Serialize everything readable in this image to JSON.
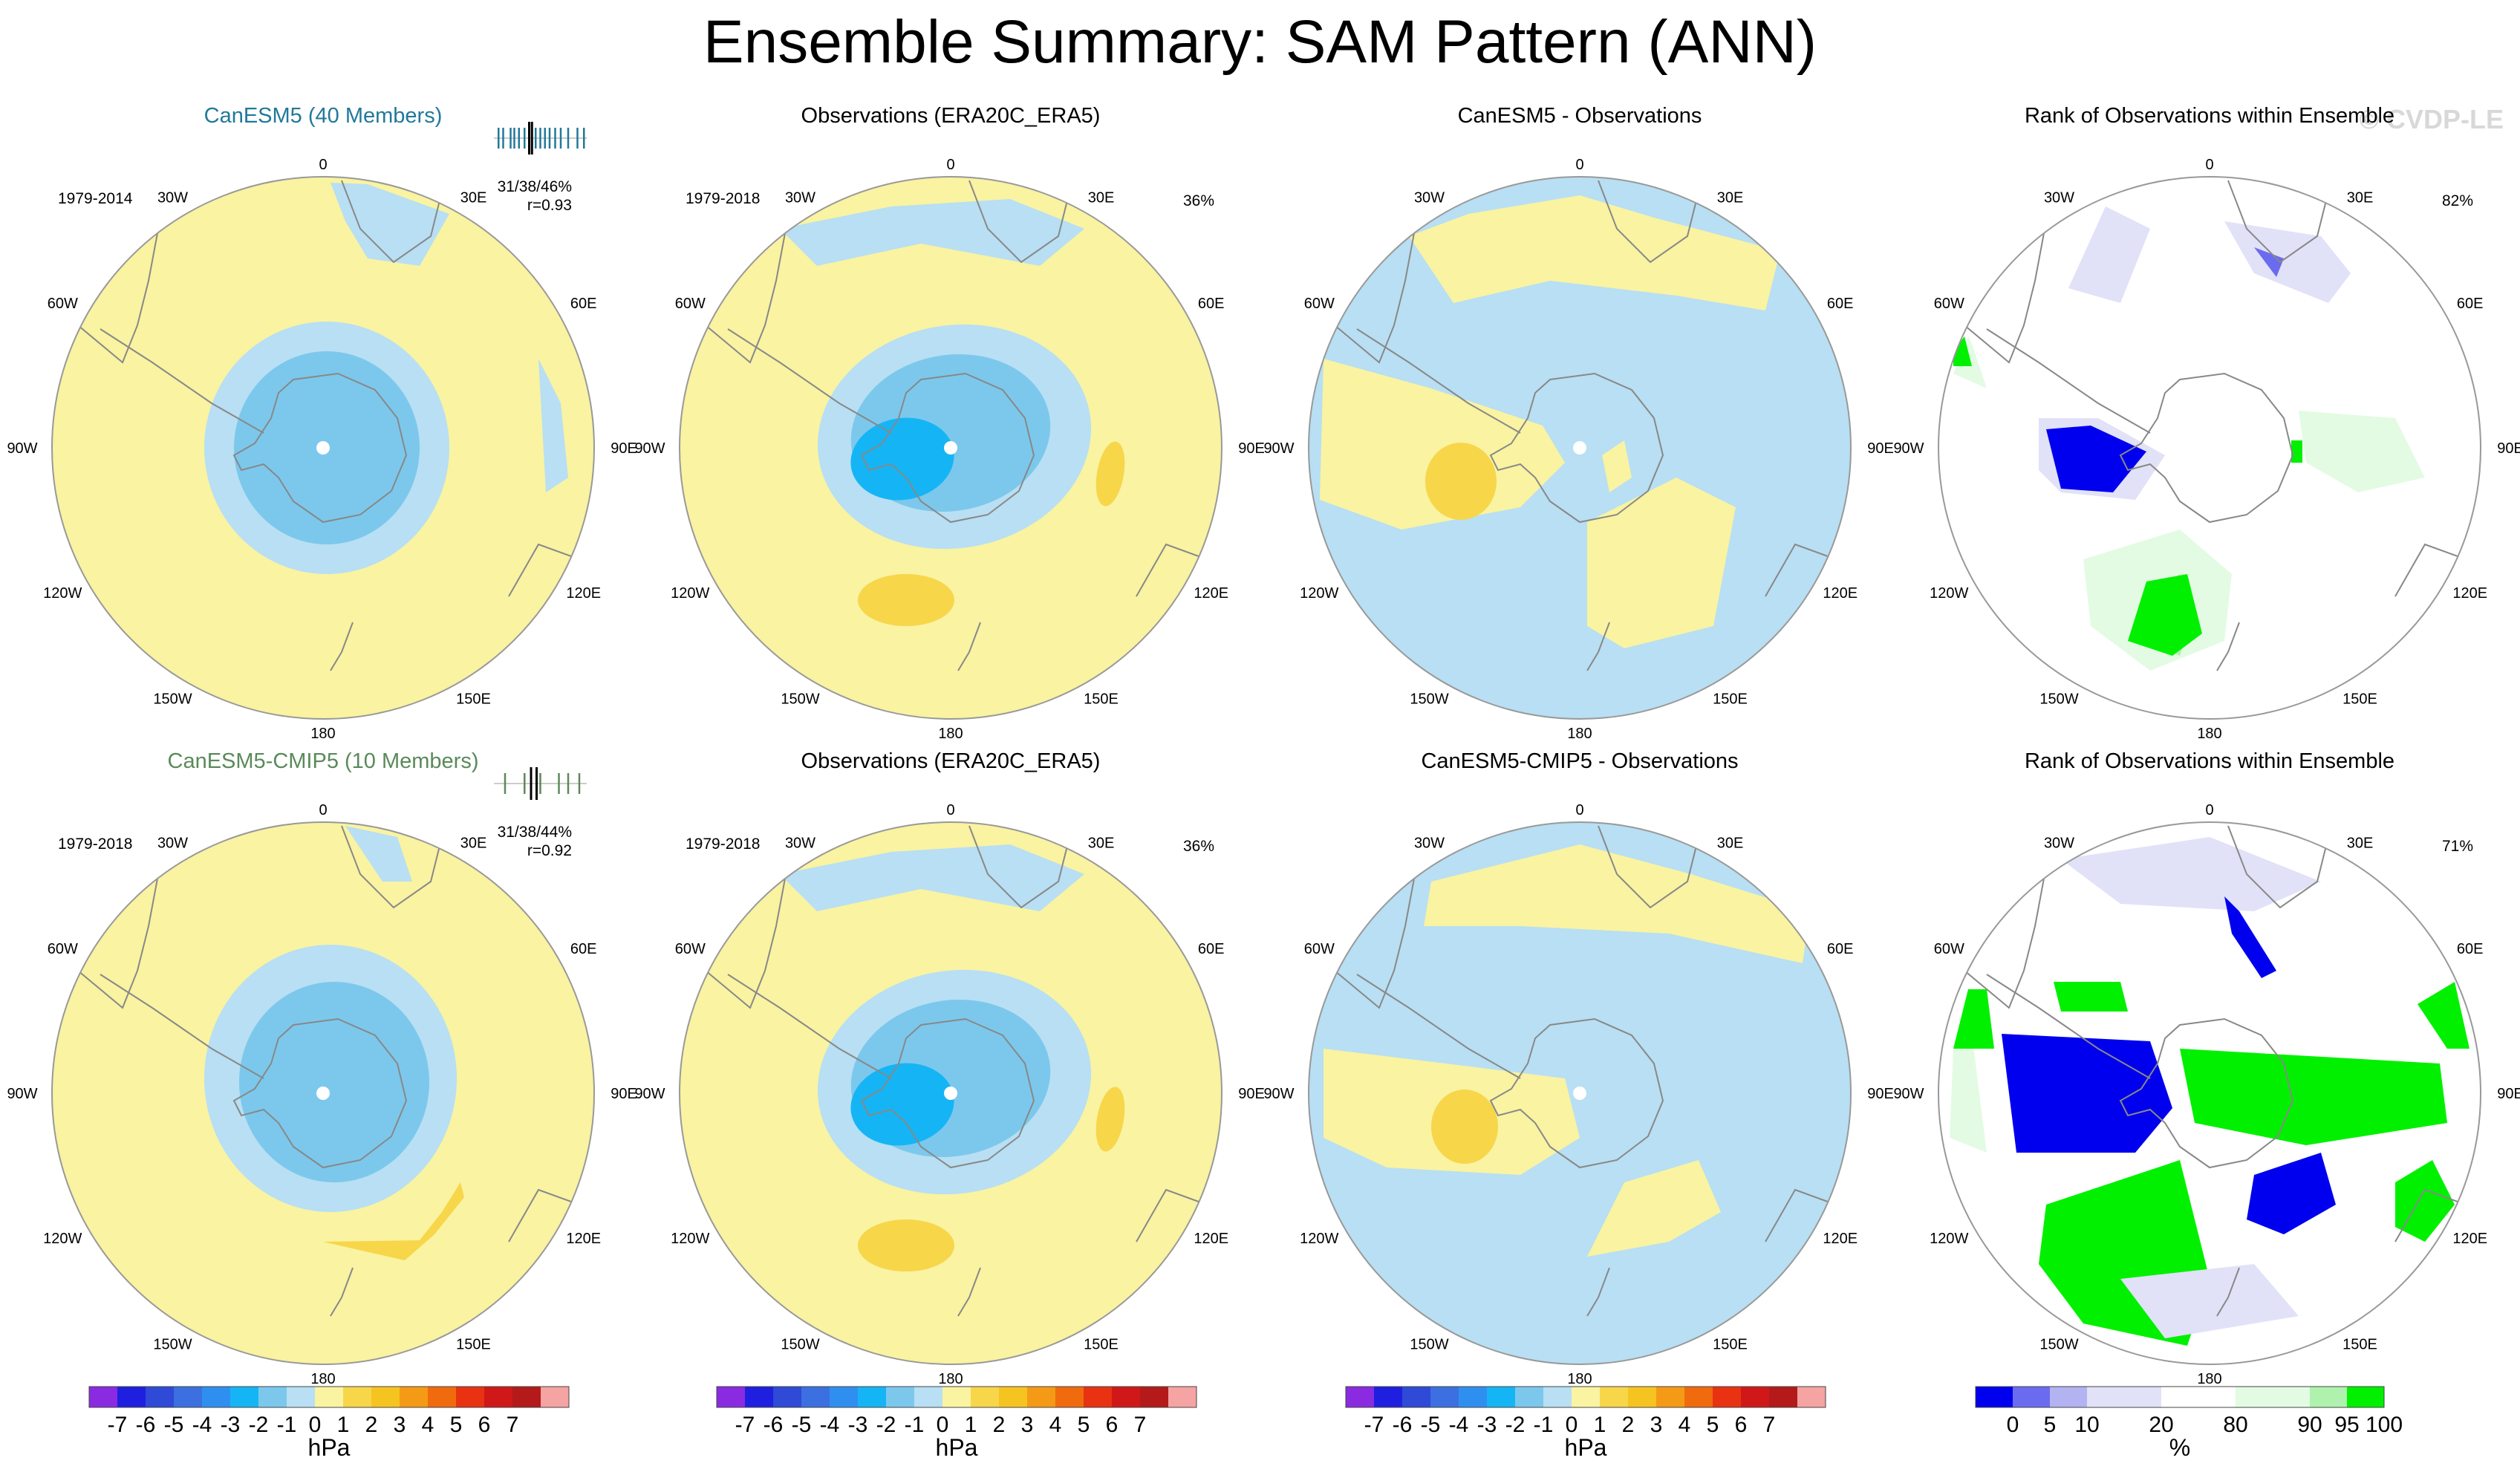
{
  "figure": {
    "title": "Ensemble Summary: SAM Pattern (ANN)",
    "watermark": "© CVDP-LE"
  },
  "colors": {
    "land_outline": "#888888",
    "circle_outline": "#999999",
    "ocean_default": "#f9f3a2"
  },
  "chart_data": [
    {
      "type": "heatmap",
      "id": "p1",
      "title": "CanESM5 (40 Members)",
      "title_color": "#21799a",
      "period": "1979-2014",
      "stat": "31/38/46%",
      "r": "r=0.93",
      "field": "ens",
      "member_bars": [
        0.05,
        0.1,
        0.18,
        0.22,
        0.27,
        0.33,
        0.38,
        0.41,
        0.45,
        0.5,
        0.55,
        0.6,
        0.66,
        0.72,
        0.8,
        0.9,
        0.97
      ],
      "highlight_bars": [
        0.38,
        0.41
      ]
    },
    {
      "type": "heatmap",
      "id": "p2",
      "title": "Observations (ERA20C_ERA5)",
      "title_color": "#000000",
      "period": "1979-2018",
      "pct": "36%",
      "field": "obs"
    },
    {
      "type": "heatmap",
      "id": "p3",
      "title": "CanESM5 - Observations",
      "title_color": "#000000",
      "field": "diff1"
    },
    {
      "type": "heatmap",
      "id": "p4",
      "title": "Rank of Observations within Ensemble",
      "title_color": "#000000",
      "pct": "82%",
      "field": "rank1"
    },
    {
      "type": "heatmap",
      "id": "p5",
      "title": "CanESM5-CMIP5 (10 Members)",
      "title_color": "#5a8a5a",
      "period": "1979-2018",
      "stat": "31/38/44%",
      "r": "r=0.92",
      "field": "ens2",
      "member_bars": [
        0.12,
        0.33,
        0.4,
        0.46,
        0.5,
        0.7,
        0.8,
        0.92
      ],
      "highlight_bars": [
        0.4,
        0.46
      ]
    },
    {
      "type": "heatmap",
      "id": "p6",
      "title": "Observations (ERA20C_ERA5)",
      "title_color": "#000000",
      "period": "1979-2018",
      "pct": "36%",
      "field": "obs"
    },
    {
      "type": "heatmap",
      "id": "p7",
      "title": "CanESM5-CMIP5 - Observations",
      "title_color": "#000000",
      "field": "diff2"
    },
    {
      "type": "heatmap",
      "id": "p8",
      "title": "Rank of Observations within Ensemble",
      "title_color": "#000000",
      "pct": "71%",
      "field": "rank2"
    }
  ],
  "map_labels": {
    "top": "0",
    "bottom": "180",
    "ul": "30W",
    "ur": "30E",
    "ml1": "60W",
    "mr1": "60E",
    "ml2": "90W",
    "mr2": "90E",
    "ml3": "120W",
    "mr3": "120E",
    "ll": "150W",
    "lr": "150E"
  },
  "colorbars": [
    {
      "id": "cb1",
      "label": "hPa",
      "ticks": [
        "-7",
        "-6",
        "-5",
        "-4",
        "-3",
        "-2",
        "-1",
        "0",
        "1",
        "2",
        "3",
        "4",
        "5",
        "6",
        "7"
      ]
    },
    {
      "id": "cb2",
      "label": "hPa",
      "ticks": [
        "-7",
        "-6",
        "-5",
        "-4",
        "-3",
        "-2",
        "-1",
        "0",
        "1",
        "2",
        "3",
        "4",
        "5",
        "6",
        "7"
      ]
    },
    {
      "id": "cb3",
      "label": "hPa",
      "ticks": [
        "-7",
        "-6",
        "-5",
        "-4",
        "-3",
        "-2",
        "-1",
        "0",
        "1",
        "2",
        "3",
        "4",
        "5",
        "6",
        "7"
      ]
    },
    {
      "id": "cb4",
      "label": "%",
      "ticks": [
        "0",
        "5",
        "10",
        "20",
        "80",
        "90",
        "95",
        "100"
      ]
    }
  ],
  "hpa_colors": [
    "#8a2be2",
    "#1f1fe0",
    "#2e4ad6",
    "#3c6fe0",
    "#2f8ff0",
    "#15b5f5",
    "#7cc8ec",
    "#b8dff3",
    "#f9f3a2",
    "#f7d64a",
    "#f5c420",
    "#f59a16",
    "#ef6b0e",
    "#e83212",
    "#d01818",
    "#b41a1a",
    "#f5a3a3"
  ],
  "pct_colors": [
    "#0000ee",
    "#6b6bf0",
    "#b3b3f2",
    "#e1e1f8",
    "#ffffff",
    "#e3fbe3",
    "#aef2ae",
    "#00f000"
  ]
}
